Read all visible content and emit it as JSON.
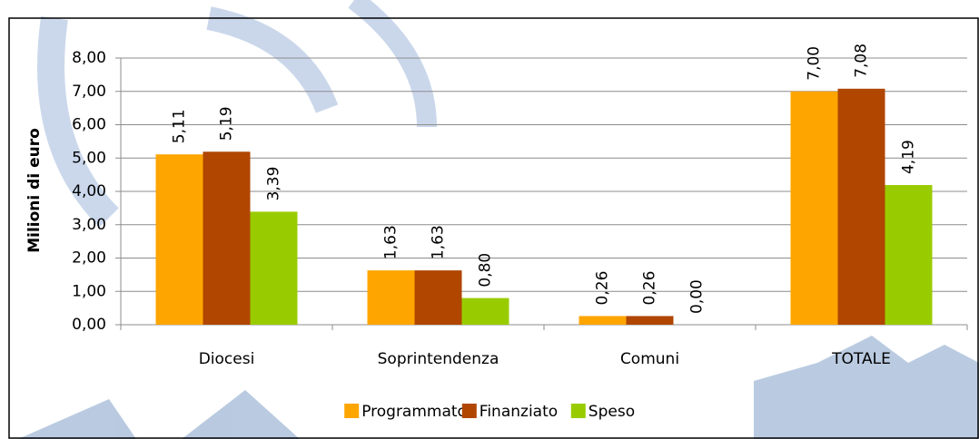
{
  "chart_data": {
    "type": "bar",
    "ylabel": "Milioni di euro",
    "categories": [
      "Diocesi",
      "Soprintendenza",
      "Comuni",
      "TOTALE"
    ],
    "series": [
      {
        "name": "Programmato",
        "color": "#ffa500",
        "values": [
          5.11,
          1.63,
          0.26,
          7.0
        ],
        "value_labels": [
          "5,11",
          "1,63",
          "0,26",
          "7,00"
        ]
      },
      {
        "name": "Finanziato",
        "color": "#b04600",
        "values": [
          5.19,
          1.63,
          0.26,
          7.08
        ],
        "value_labels": [
          "5,19",
          "1,63",
          "0,26",
          "7,08"
        ]
      },
      {
        "name": "Speso",
        "color": "#99cc00",
        "values": [
          3.39,
          0.8,
          0.0,
          4.19
        ],
        "value_labels": [
          "3,39",
          "0,80",
          "0,00",
          "4,19"
        ]
      }
    ],
    "ylim": [
      0,
      8
    ],
    "yticks": [
      {
        "value": 0,
        "label": "0,00"
      },
      {
        "value": 1,
        "label": "1,00"
      },
      {
        "value": 2,
        "label": "2,00"
      },
      {
        "value": 3,
        "label": "3,00"
      },
      {
        "value": 4,
        "label": "4,00"
      },
      {
        "value": 5,
        "label": "5,00"
      },
      {
        "value": 6,
        "label": "6,00"
      },
      {
        "value": 7,
        "label": "7,00"
      },
      {
        "value": 8,
        "label": "8,00"
      }
    ],
    "grid": true,
    "legend": "bottom"
  }
}
